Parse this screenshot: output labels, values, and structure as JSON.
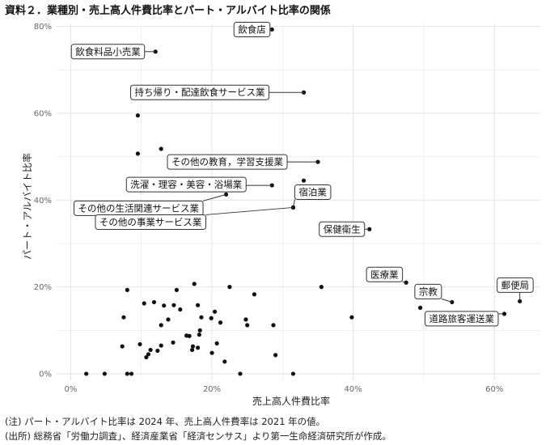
{
  "title": "資料２．業種別・売上高人件費比率とパート・アルバイト比率の関係",
  "notes": [
    "(注) パート・アルバイト比率は 2024 年、売上高人件費率は 2021 年の値。",
    "(出所) 総務省「労働力調査」、経済産業省「経済センサス」より第一生命経済研究所が作成。"
  ],
  "chart_data": {
    "type": "scatter",
    "xlabel": "売上高人件費比率",
    "ylabel": "パート・アルバイト比率",
    "xlim": [
      -0.02,
      0.665
    ],
    "ylim": [
      -0.015,
      0.805
    ],
    "x_ticks": [
      0,
      0.2,
      0.4,
      0.6
    ],
    "x_tick_labels": [
      "0%",
      "20%",
      "40%",
      "60%"
    ],
    "y_ticks": [
      0,
      0.2,
      0.4,
      0.6,
      0.8
    ],
    "y_tick_labels": [
      "0%",
      "20%",
      "40%",
      "60%",
      "80%"
    ],
    "grid": true,
    "colors": {
      "point": "#111111",
      "grid": "#e3e3e3",
      "label_border": "#333333"
    },
    "labeled_points": [
      {
        "label": "飲食店",
        "x": 0.285,
        "y": 0.793
      },
      {
        "label": "飲食料品小売業",
        "x": 0.12,
        "y": 0.742
      },
      {
        "label": "持ち帰り・配達飲食サービス業",
        "x": 0.33,
        "y": 0.648
      },
      {
        "label": "その他の教育，学習支援業",
        "x": 0.35,
        "y": 0.488
      },
      {
        "label": "洗濯・理容・美容・浴場業",
        "x": 0.285,
        "y": 0.434
      },
      {
        "label": "宿泊業",
        "x": 0.315,
        "y": 0.383
      },
      {
        "label": "その他の生活関連サービス業",
        "x": 0.22,
        "y": 0.413
      },
      {
        "label": "その他の事業サービス業",
        "x": 0.315,
        "y": 0.383
      },
      {
        "label": "保健衛生",
        "x": 0.423,
        "y": 0.333
      },
      {
        "label": "医療業",
        "x": 0.475,
        "y": 0.21
      },
      {
        "label": "宗教",
        "x": 0.54,
        "y": 0.165
      },
      {
        "label": "郵便局",
        "x": 0.636,
        "y": 0.167
      },
      {
        "label": "道路旅客運送業",
        "x": 0.614,
        "y": 0.138
      }
    ],
    "points": [
      {
        "x": 0.095,
        "y": 0.595
      },
      {
        "x": 0.128,
        "y": 0.518
      },
      {
        "x": 0.095,
        "y": 0.507
      },
      {
        "x": 0.33,
        "y": 0.445
      },
      {
        "x": 0.083,
        "y": 0.365
      },
      {
        "x": 0.12,
        "y": 0.35
      },
      {
        "x": 0.168,
        "y": 0.358
      },
      {
        "x": 0.355,
        "y": 0.2
      },
      {
        "x": 0.398,
        "y": 0.13
      },
      {
        "x": 0.495,
        "y": 0.152
      },
      {
        "x": 0.08,
        "y": 0.193
      },
      {
        "x": 0.175,
        "y": 0.207
      },
      {
        "x": 0.15,
        "y": 0.193
      },
      {
        "x": 0.225,
        "y": 0.2
      },
      {
        "x": 0.26,
        "y": 0.183
      },
      {
        "x": 0.118,
        "y": 0.165
      },
      {
        "x": 0.104,
        "y": 0.162
      },
      {
        "x": 0.146,
        "y": 0.158
      },
      {
        "x": 0.18,
        "y": 0.158
      },
      {
        "x": 0.132,
        "y": 0.157
      },
      {
        "x": 0.155,
        "y": 0.148
      },
      {
        "x": 0.204,
        "y": 0.143
      },
      {
        "x": 0.075,
        "y": 0.13
      },
      {
        "x": 0.185,
        "y": 0.13
      },
      {
        "x": 0.199,
        "y": 0.128
      },
      {
        "x": 0.138,
        "y": 0.125
      },
      {
        "x": 0.212,
        "y": 0.118
      },
      {
        "x": 0.248,
        "y": 0.125
      },
      {
        "x": 0.128,
        "y": 0.112
      },
      {
        "x": 0.25,
        "y": 0.112
      },
      {
        "x": 0.287,
        "y": 0.112
      },
      {
        "x": 0.183,
        "y": 0.1
      },
      {
        "x": 0.164,
        "y": 0.088
      },
      {
        "x": 0.168,
        "y": 0.087
      },
      {
        "x": 0.182,
        "y": 0.09
      },
      {
        "x": 0.145,
        "y": 0.072
      },
      {
        "x": 0.207,
        "y": 0.07
      },
      {
        "x": 0.098,
        "y": 0.068
      },
      {
        "x": 0.073,
        "y": 0.063
      },
      {
        "x": 0.173,
        "y": 0.063
      },
      {
        "x": 0.128,
        "y": 0.065
      },
      {
        "x": 0.18,
        "y": 0.06
      },
      {
        "x": 0.172,
        "y": 0.055
      },
      {
        "x": 0.113,
        "y": 0.055
      },
      {
        "x": 0.123,
        "y": 0.053
      },
      {
        "x": 0.11,
        "y": 0.045
      },
      {
        "x": 0.2,
        "y": 0.048
      },
      {
        "x": 0.107,
        "y": 0.038
      },
      {
        "x": 0.29,
        "y": 0.043
      },
      {
        "x": 0.218,
        "y": 0.028
      },
      {
        "x": 0.022,
        "y": 0.0
      },
      {
        "x": 0.048,
        "y": 0.0
      },
      {
        "x": 0.08,
        "y": 0.0
      },
      {
        "x": 0.086,
        "y": 0.0
      },
      {
        "x": 0.24,
        "y": 0.0
      },
      {
        "x": 0.315,
        "y": 0.0
      }
    ]
  }
}
